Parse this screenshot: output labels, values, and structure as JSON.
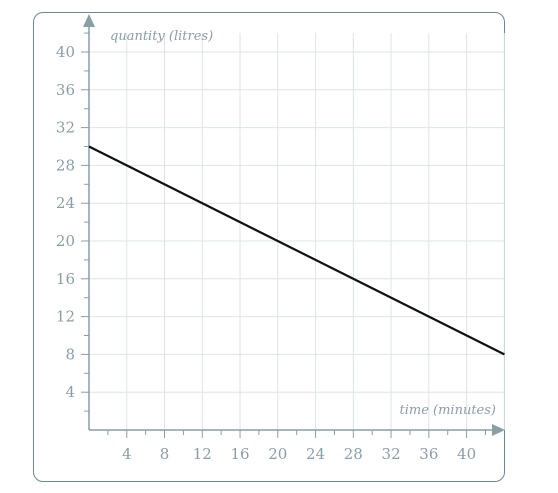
{
  "chart_data": {
    "type": "line",
    "xlabel": "time (minutes)",
    "ylabel": "quantity (litres)",
    "xlim": [
      0,
      44
    ],
    "ylim": [
      0,
      42
    ],
    "x_ticks": [
      4,
      8,
      12,
      16,
      20,
      24,
      28,
      32,
      36,
      40
    ],
    "y_ticks": [
      4,
      8,
      12,
      16,
      20,
      24,
      28,
      32,
      36,
      40
    ],
    "grid": true,
    "series": [
      {
        "x": [
          0,
          44
        ],
        "values": [
          30,
          8
        ]
      }
    ],
    "colors": {
      "line": "#111111",
      "grid": "#dde4e6",
      "axis": "#8a9ea6",
      "frame": "#6f8791"
    }
  }
}
